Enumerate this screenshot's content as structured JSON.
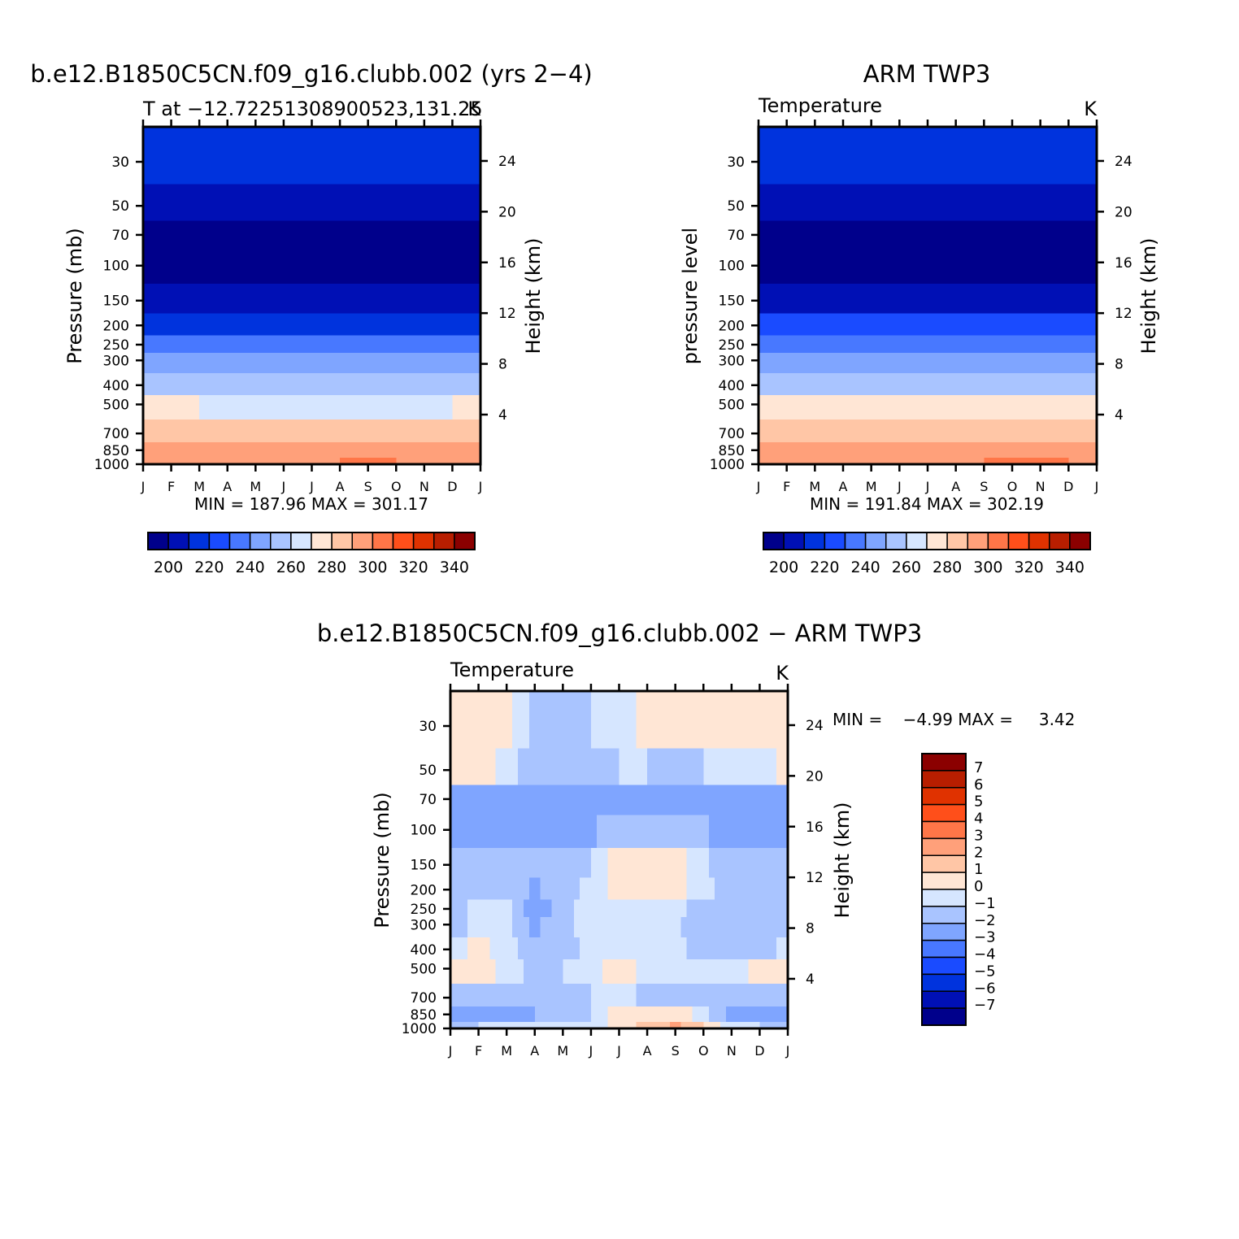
{
  "panels": {
    "model": {
      "title": "b.e12.B1850C5CN.f09_g16.clubb.002 (yrs 2−4)",
      "left_label": "T at −12.7225130890052​3,131.25",
      "right_label": "K",
      "ylabel": "Pressure (mb)",
      "ylabel_right": "Height (km)",
      "minmax": "MIN = 187.96 MAX = 301.17"
    },
    "obs": {
      "title": "ARM TWP3",
      "left_label": "Temperature",
      "right_label": "K",
      "ylabel": "pressure level",
      "ylabel_right": "Height (km)",
      "minmax": "MIN = 191.84 MAX = 302.19"
    },
    "diff": {
      "title": "b.e12.B1850C5CN.f09_g16.clubb.002 − ARM TWP3",
      "left_label": "Temperature",
      "right_label": "K",
      "ylabel": "Pressure (mb)",
      "ylabel_right": "Height (km)",
      "minmax": "MIN =    −4.99 MAX =     3.42"
    }
  },
  "chart_data": [
    {
      "type": "heatmap",
      "name": "model",
      "title": "b.e12.B1850C5CN.f09_g16.clubb.002 (yrs 2−4)",
      "x": [
        "J",
        "F",
        "M",
        "A",
        "M",
        "J",
        "J",
        "A",
        "S",
        "O",
        "N",
        "D",
        "J"
      ],
      "pressure_levels": [
        1000,
        850,
        700,
        500,
        400,
        300,
        250,
        200,
        150,
        100,
        70,
        50,
        30
      ],
      "height_ticks_km": [
        4,
        8,
        12,
        16,
        20,
        24
      ],
      "yscale": "log",
      "ylim": [
        1000,
        20
      ],
      "contour_levels": [
        190,
        200,
        210,
        220,
        230,
        240,
        250,
        260,
        270,
        280,
        290,
        300,
        310,
        320,
        330,
        340,
        350
      ],
      "values_by_level": {
        "1000": [
          298,
          298,
          298,
          299,
          299,
          299,
          299,
          300,
          300,
          300,
          299,
          298,
          298
        ],
        "850": [
          291,
          291,
          290,
          290,
          290,
          290,
          290,
          290,
          291,
          291,
          291,
          291,
          291
        ],
        "700": [
          284,
          284,
          284,
          283,
          283,
          283,
          284,
          283,
          283,
          283,
          283,
          284,
          284
        ],
        "500": [
          270,
          270,
          270,
          269,
          269,
          269,
          270,
          269,
          269,
          269,
          269,
          270,
          270
        ],
        "400": [
          259,
          259,
          259,
          258,
          258,
          258,
          258,
          258,
          258,
          258,
          258,
          259,
          259
        ],
        "300": [
          242,
          242,
          242,
          241,
          241,
          241,
          242,
          242,
          241,
          241,
          241,
          242,
          242
        ],
        "250": [
          232,
          232,
          232,
          231,
          231,
          231,
          232,
          232,
          231,
          231,
          231,
          232,
          232
        ],
        "200": [
          219,
          219,
          219,
          218,
          218,
          219,
          219,
          219,
          219,
          219,
          219,
          219,
          219
        ],
        "150": [
          205,
          205,
          205,
          205,
          205,
          206,
          206,
          206,
          206,
          205,
          205,
          205,
          205
        ],
        "100": [
          193,
          193,
          193,
          193,
          193,
          193,
          193,
          193,
          193,
          193,
          193,
          193,
          193
        ],
        "70": [
          198,
          198,
          197,
          197,
          196,
          196,
          195,
          195,
          195,
          196,
          197,
          198,
          198
        ],
        "50": [
          204,
          204,
          203,
          203,
          202,
          202,
          201,
          201,
          201,
          202,
          203,
          203,
          204
        ],
        "30": [
          212,
          212,
          212,
          212,
          212,
          212,
          212,
          212,
          212,
          212,
          212,
          212,
          212
        ]
      },
      "min": 187.96,
      "max": 301.17,
      "colorbar_labels": [
        "200",
        "220",
        "240",
        "260",
        "280",
        "300",
        "320",
        "340"
      ]
    },
    {
      "type": "heatmap",
      "name": "obs",
      "title": "ARM TWP3",
      "x": [
        "J",
        "F",
        "M",
        "A",
        "M",
        "J",
        "J",
        "A",
        "S",
        "O",
        "N",
        "D",
        "J"
      ],
      "pressure_levels": [
        1000,
        850,
        700,
        500,
        400,
        300,
        250,
        200,
        150,
        100,
        70,
        50,
        30
      ],
      "height_ticks_km": [
        4,
        8,
        12,
        16,
        20,
        24
      ],
      "yscale": "log",
      "ylim": [
        1000,
        20
      ],
      "contour_levels": [
        190,
        200,
        210,
        220,
        230,
        240,
        250,
        260,
        270,
        280,
        290,
        300,
        310,
        320,
        330,
        340,
        350
      ],
      "values_by_level": {
        "1000": [
          299,
          299,
          299,
          299,
          299,
          299,
          299,
          299,
          300,
          301,
          301,
          300,
          299
        ],
        "850": [
          292,
          292,
          292,
          291,
          291,
          291,
          291,
          291,
          292,
          292,
          292,
          292,
          292
        ],
        "700": [
          284,
          284,
          284,
          284,
          284,
          284,
          284,
          284,
          284,
          284,
          284,
          284,
          284
        ],
        "500": [
          270,
          270,
          270,
          270,
          270,
          270,
          270,
          270,
          270,
          270,
          270,
          270,
          270
        ],
        "400": [
          259,
          259,
          259,
          259,
          259,
          259,
          259,
          259,
          259,
          259,
          259,
          259,
          259
        ],
        "300": [
          243,
          243,
          243,
          243,
          243,
          243,
          243,
          243,
          243,
          243,
          243,
          243,
          243
        ],
        "250": [
          233,
          233,
          233,
          233,
          233,
          233,
          233,
          233,
          233,
          233,
          233,
          233,
          233
        ],
        "200": [
          220,
          220,
          220,
          220,
          220,
          220,
          220,
          220,
          220,
          220,
          220,
          220,
          220
        ],
        "150": [
          206,
          206,
          206,
          206,
          206,
          206,
          206,
          206,
          206,
          206,
          206,
          206,
          206
        ],
        "100": [
          196,
          196,
          196,
          196,
          196,
          196,
          196,
          196,
          196,
          196,
          196,
          196,
          196
        ],
        "70": [
          199,
          199,
          198,
          197,
          196,
          195,
          194,
          193,
          194,
          196,
          197,
          198,
          199
        ],
        "50": [
          205,
          205,
          204,
          203,
          202,
          201,
          201,
          201,
          201,
          202,
          203,
          204,
          205
        ],
        "30": [
          213,
          213,
          213,
          213,
          213,
          213,
          213,
          213,
          213,
          213,
          213,
          213,
          213
        ]
      },
      "min": 191.84,
      "max": 302.19,
      "colorbar_labels": [
        "200",
        "220",
        "240",
        "260",
        "280",
        "300",
        "320",
        "340"
      ]
    },
    {
      "type": "heatmap",
      "name": "difference",
      "title": "b.e12.B1850C5CN.f09_g16.clubb.002 − ARM TWP3",
      "x": [
        "J",
        "F",
        "M",
        "A",
        "M",
        "J",
        "J",
        "A",
        "S",
        "O",
        "N",
        "D",
        "J"
      ],
      "pressure_levels": [
        1000,
        850,
        700,
        500,
        400,
        300,
        250,
        200,
        150,
        100,
        70,
        50,
        30
      ],
      "height_ticks_km": [
        4,
        8,
        12,
        16,
        20,
        24
      ],
      "yscale": "log",
      "ylim": [
        1000,
        20
      ],
      "contour_levels": [
        -8,
        -7,
        -6,
        -5,
        -4,
        -3,
        -2,
        -1,
        0,
        1,
        2,
        3,
        4,
        5,
        6,
        7,
        8
      ],
      "values_by_level": {
        "1000": [
          -1.5,
          -1.0,
          -0.8,
          -0.9,
          -1.0,
          -0.6,
          0.5,
          1.3,
          2.2,
          1.0,
          -0.5,
          -1.0,
          -1.5
        ],
        "850": [
          -2.2,
          -2.5,
          -2.5,
          -2.0,
          -2.0,
          -1.0,
          0.5,
          1.0,
          0.5,
          -0.5,
          -2.5,
          -2.5,
          -2.2
        ],
        "700": [
          -1.3,
          -1.5,
          -1.2,
          -1.5,
          -1.5,
          -1.0,
          -0.5,
          -1.5,
          -2.0,
          -1.5,
          -1.0,
          -1.2,
          -1.3
        ],
        "500": [
          0.5,
          0.5,
          -0.5,
          -1.5,
          -1.0,
          -0.5,
          0.5,
          -0.5,
          -0.5,
          -0.8,
          -0.5,
          0.4,
          0.5
        ],
        "400": [
          -0.6,
          0.5,
          -0.6,
          -1.6,
          -1.5,
          -0.7,
          -0.2,
          -0.5,
          -0.6,
          -1.5,
          -1.5,
          -1.5,
          -0.6
        ],
        "300": [
          -1.5,
          -0.7,
          -0.5,
          -2.2,
          -1.2,
          -0.6,
          -0.3,
          -0.3,
          -0.8,
          -1.5,
          -1.5,
          -1.5,
          -1.5
        ],
        "250": [
          -1.5,
          -0.7,
          -0.8,
          -2.8,
          -1.4,
          -0.6,
          -0.3,
          -0.5,
          -0.6,
          -1.5,
          -1.5,
          -1.5,
          -1.5
        ],
        "200": [
          -1.5,
          -1.0,
          -1.2,
          -2.2,
          -1.5,
          -0.7,
          0.5,
          0.6,
          0.5,
          -0.7,
          -1.5,
          -1.5,
          -1.5
        ],
        "150": [
          -1.5,
          -1.5,
          -1.5,
          -1.5,
          -1.5,
          -1.0,
          0.5,
          1.0,
          0.5,
          -0.8,
          -1.5,
          -1.5,
          -1.5
        ],
        "100": [
          -2.5,
          -2.2,
          -2.5,
          -2.5,
          -2.5,
          -2.2,
          -1.5,
          -1.0,
          -1.2,
          -1.8,
          -2.5,
          -2.8,
          -2.5
        ],
        "70": [
          -2.5,
          -2.8,
          -2.5,
          -2.5,
          -2.5,
          -2.5,
          -2.5,
          -2.3,
          -2.0,
          -2.3,
          -2.5,
          -2.5,
          -2.5
        ],
        "50": [
          0.3,
          0.9,
          -0.7,
          -1.5,
          -1.5,
          -1.5,
          -1.0,
          -1.0,
          -1.2,
          -1.0,
          -0.5,
          -0.5,
          0.3
        ],
        "30": [
          0.5,
          0.6,
          0.5,
          -1.5,
          -1.2,
          -1.0,
          -0.6,
          0.4,
          0.5,
          0.0,
          0.4,
          0.6,
          0.5
        ]
      },
      "min": -4.99,
      "max": 3.42,
      "colorbar_labels": [
        "7",
        "6",
        "5",
        "4",
        "3",
        "2",
        "1",
        "0",
        "−1",
        "−2",
        "−3",
        "−4",
        "−5",
        "−6",
        "−7"
      ]
    }
  ],
  "palette": [
    "#00008b",
    "#0010b5",
    "#0033dd",
    "#1a4bff",
    "#4878ff",
    "#7fa5ff",
    "#a9c4ff",
    "#d6e6ff",
    "#ffe6d5",
    "#ffc6a6",
    "#ffa07a",
    "#ff7648",
    "#ff4f1a",
    "#e03200",
    "#b81e00",
    "#8b0000"
  ],
  "pressure_tick_labels": [
    "30",
    "50",
    "70",
    "100",
    "150",
    "200",
    "250",
    "300",
    "400",
    "500",
    "700",
    "850",
    "1000"
  ],
  "height_tick_labels": [
    "4",
    "8",
    "12",
    "16",
    "20",
    "24"
  ]
}
